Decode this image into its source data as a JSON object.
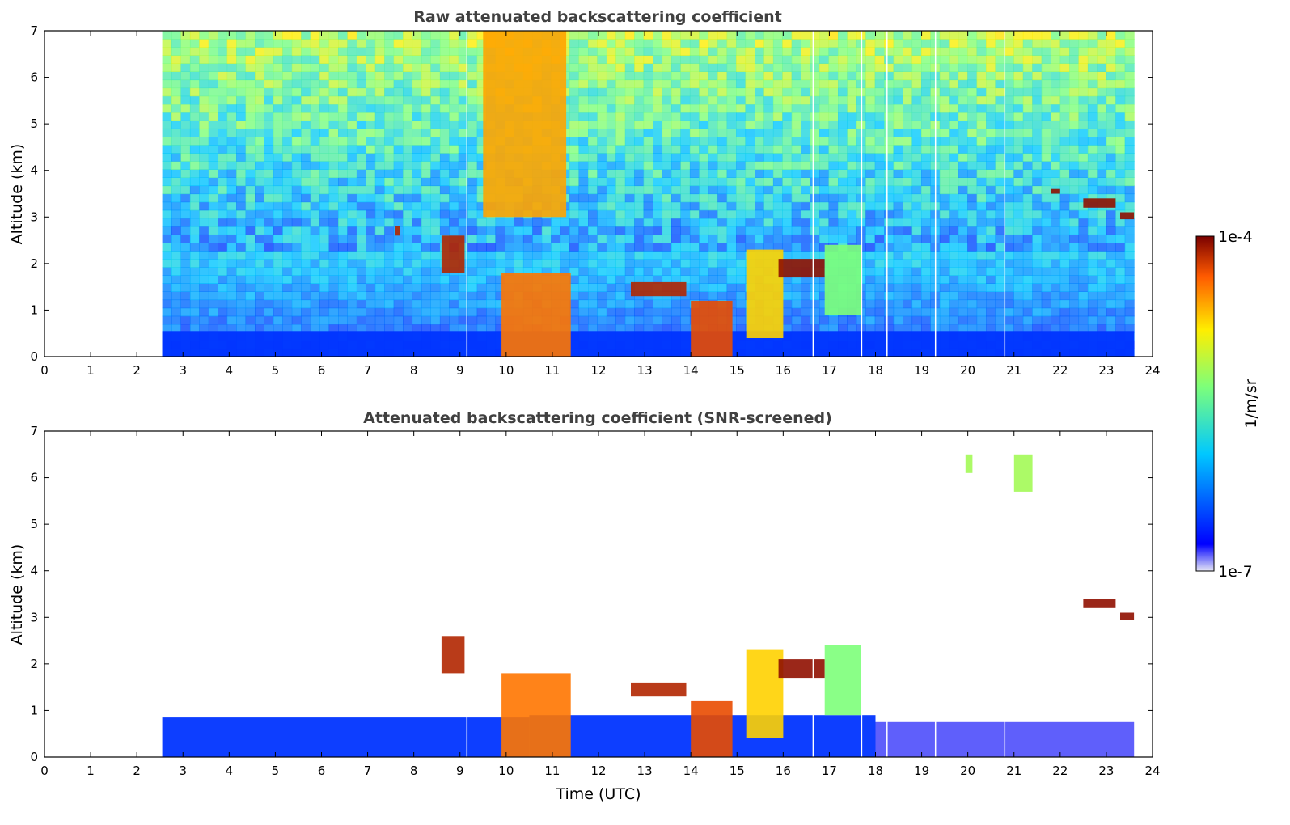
{
  "chart_data": [
    {
      "type": "heatmap",
      "title": "Raw attenuated backscattering coefficient",
      "xlabel": "",
      "ylabel": "Altitude (km)",
      "xlim": [
        0,
        24
      ],
      "ylim": [
        0,
        7
      ],
      "xticks": [
        "0",
        "1",
        "2",
        "3",
        "4",
        "5",
        "6",
        "7",
        "8",
        "9",
        "10",
        "11",
        "12",
        "13",
        "14",
        "15",
        "16",
        "17",
        "18",
        "19",
        "20",
        "21",
        "22",
        "23",
        "24"
      ],
      "yticks": [
        "0",
        "1",
        "2",
        "3",
        "4",
        "5",
        "6",
        "7"
      ],
      "data_time_range": [
        2.55,
        23.6
      ],
      "gap_times": [
        9.15,
        16.65,
        17.7,
        18.25,
        19.3,
        20.8
      ],
      "features": [
        {
          "kind": "boundary-layer",
          "t": [
            2.55,
            23.6
          ],
          "alt_km": [
            0,
            0.55
          ],
          "level": 0.15
        },
        {
          "kind": "aerosol-plume",
          "t": [
            9.5,
            11.3
          ],
          "alt_km": [
            3,
            7
          ],
          "level": 0.8
        },
        {
          "kind": "cloud",
          "t": [
            7.6,
            7.7
          ],
          "alt_km": [
            2.6,
            2.8
          ],
          "level": 0.95
        },
        {
          "kind": "cloud",
          "t": [
            8.6,
            9.1
          ],
          "alt_km": [
            1.8,
            2.6
          ],
          "level": 0.95
        },
        {
          "kind": "cloud",
          "t": [
            9.9,
            11.4
          ],
          "alt_km": [
            0,
            1.8
          ],
          "level": 0.85
        },
        {
          "kind": "cloud",
          "t": [
            12.7,
            13.9
          ],
          "alt_km": [
            1.3,
            1.6
          ],
          "level": 0.95
        },
        {
          "kind": "cloud",
          "t": [
            14.0,
            14.9
          ],
          "alt_km": [
            0,
            1.2
          ],
          "level": 0.9
        },
        {
          "kind": "cloud",
          "t": [
            15.2,
            16.0
          ],
          "alt_km": [
            0.4,
            2.3
          ],
          "level": 0.75
        },
        {
          "kind": "cloud",
          "t": [
            15.9,
            16.9
          ],
          "alt_km": [
            1.7,
            2.1
          ],
          "level": 0.98
        },
        {
          "kind": "cloud",
          "t": [
            16.9,
            17.7
          ],
          "alt_km": [
            0.9,
            2.4
          ],
          "level": 0.55
        },
        {
          "kind": "cloud",
          "t": [
            21.8,
            22.0
          ],
          "alt_km": [
            3.5,
            3.6
          ],
          "level": 0.98
        },
        {
          "kind": "cloud",
          "t": [
            22.5,
            23.2
          ],
          "alt_km": [
            3.2,
            3.4
          ],
          "level": 0.98
        },
        {
          "kind": "cloud",
          "t": [
            23.3,
            23.6
          ],
          "alt_km": [
            2.95,
            3.1
          ],
          "level": 0.98
        }
      ]
    },
    {
      "type": "heatmap",
      "title": "Attenuated backscattering coefficient (SNR-screened)",
      "xlabel": "Time (UTC)",
      "ylabel": "Altitude (km)",
      "xlim": [
        0,
        24
      ],
      "ylim": [
        0,
        7
      ],
      "xticks": [
        "0",
        "1",
        "2",
        "3",
        "4",
        "5",
        "6",
        "7",
        "8",
        "9",
        "10",
        "11",
        "12",
        "13",
        "14",
        "15",
        "16",
        "17",
        "18",
        "19",
        "20",
        "21",
        "22",
        "23",
        "24"
      ],
      "yticks": [
        "0",
        "1",
        "2",
        "3",
        "4",
        "5",
        "6",
        "7"
      ],
      "data_time_range": [
        2.55,
        23.6
      ],
      "gap_times": [
        9.15,
        16.65,
        17.7,
        18.25,
        19.3,
        20.8
      ],
      "features": [
        {
          "kind": "boundary-layer",
          "t": [
            2.55,
            10.5
          ],
          "alt_km": [
            0,
            0.85
          ],
          "level": 0.15
        },
        {
          "kind": "boundary-layer",
          "t": [
            10.5,
            18.0
          ],
          "alt_km": [
            0,
            0.9
          ],
          "level": 0.15
        },
        {
          "kind": "boundary-layer-faint",
          "t": [
            18.0,
            23.6
          ],
          "alt_km": [
            0,
            0.75
          ],
          "level": 0.05
        },
        {
          "kind": "cloud",
          "t": [
            8.6,
            9.1
          ],
          "alt_km": [
            1.8,
            2.6
          ],
          "level": 0.95
        },
        {
          "kind": "cloud",
          "t": [
            9.9,
            11.4
          ],
          "alt_km": [
            0,
            1.8
          ],
          "level": 0.85
        },
        {
          "kind": "cloud",
          "t": [
            12.7,
            13.9
          ],
          "alt_km": [
            1.3,
            1.6
          ],
          "level": 0.95
        },
        {
          "kind": "cloud",
          "t": [
            14.0,
            14.9
          ],
          "alt_km": [
            0,
            1.2
          ],
          "level": 0.9
        },
        {
          "kind": "cloud",
          "t": [
            15.2,
            16.0
          ],
          "alt_km": [
            0.4,
            2.3
          ],
          "level": 0.75
        },
        {
          "kind": "cloud",
          "t": [
            15.9,
            16.9
          ],
          "alt_km": [
            1.7,
            2.1
          ],
          "level": 0.98
        },
        {
          "kind": "cloud",
          "t": [
            16.9,
            17.7
          ],
          "alt_km": [
            0.9,
            2.4
          ],
          "level": 0.55
        },
        {
          "kind": "cloud",
          "t": [
            19.95,
            20.1
          ],
          "alt_km": [
            6.1,
            6.5
          ],
          "level": 0.6
        },
        {
          "kind": "cloud",
          "t": [
            21.0,
            21.4
          ],
          "alt_km": [
            5.7,
            6.5
          ],
          "level": 0.6
        },
        {
          "kind": "cloud",
          "t": [
            22.5,
            23.2
          ],
          "alt_km": [
            3.2,
            3.4
          ],
          "level": 0.98
        },
        {
          "kind": "cloud",
          "t": [
            23.3,
            23.6
          ],
          "alt_km": [
            2.95,
            3.1
          ],
          "level": 0.98
        }
      ]
    }
  ],
  "colorbar": {
    "label": "1/m/sr",
    "max_label": "1e-4",
    "min_label": "1e-7",
    "colormap": "jet",
    "colors": [
      "#e6e6f5",
      "#0000ff",
      "#00c8ff",
      "#7dff7a",
      "#ffee00",
      "#ff5a00",
      "#7a0000"
    ]
  }
}
